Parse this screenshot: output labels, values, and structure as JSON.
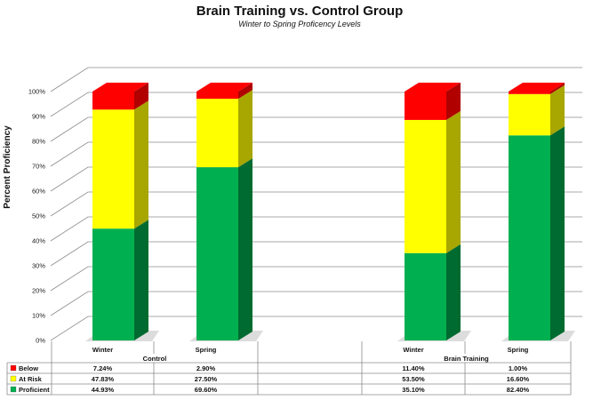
{
  "chart_data": {
    "type": "bar",
    "stacked": true,
    "three_d": true,
    "title": "Brain Training vs. Control Group",
    "subtitle": "Winter to Spring Proficency Levels",
    "ylabel": "Percent Proficiency",
    "ylim": [
      0,
      100
    ],
    "yticks": [
      "0%",
      "10%",
      "20%",
      "30%",
      "40%",
      "50%",
      "60%",
      "70%",
      "80%",
      "90%",
      "100%"
    ],
    "grid": true,
    "legend": "data-table",
    "groups": [
      "Control",
      "Brain Training"
    ],
    "categories": [
      "Winter",
      "Spring",
      "Winter",
      "Spring"
    ],
    "category_group": [
      0,
      0,
      1,
      1
    ],
    "series": [
      {
        "name": "Proficient",
        "color": "#00b050",
        "side_color": "#006b30",
        "values": [
          44.93,
          69.6,
          35.1,
          82.4
        ],
        "labels": [
          "44.93%",
          "69.60%",
          "35.10%",
          "82.40%"
        ]
      },
      {
        "name": "At Risk",
        "color": "#ffff00",
        "side_color": "#a8a600",
        "values": [
          47.83,
          27.5,
          53.5,
          16.6
        ],
        "labels": [
          "47.83%",
          "27.50%",
          "53.50%",
          "16.60%"
        ]
      },
      {
        "name": "Below",
        "color": "#ff0000",
        "side_color": "#b00000",
        "values": [
          7.24,
          2.9,
          11.4,
          1.0
        ],
        "labels": [
          "7.24%",
          "2.90%",
          "11.40%",
          "1.00%"
        ]
      }
    ],
    "table_row_order": [
      "Below",
      "At Risk",
      "Proficient"
    ]
  }
}
